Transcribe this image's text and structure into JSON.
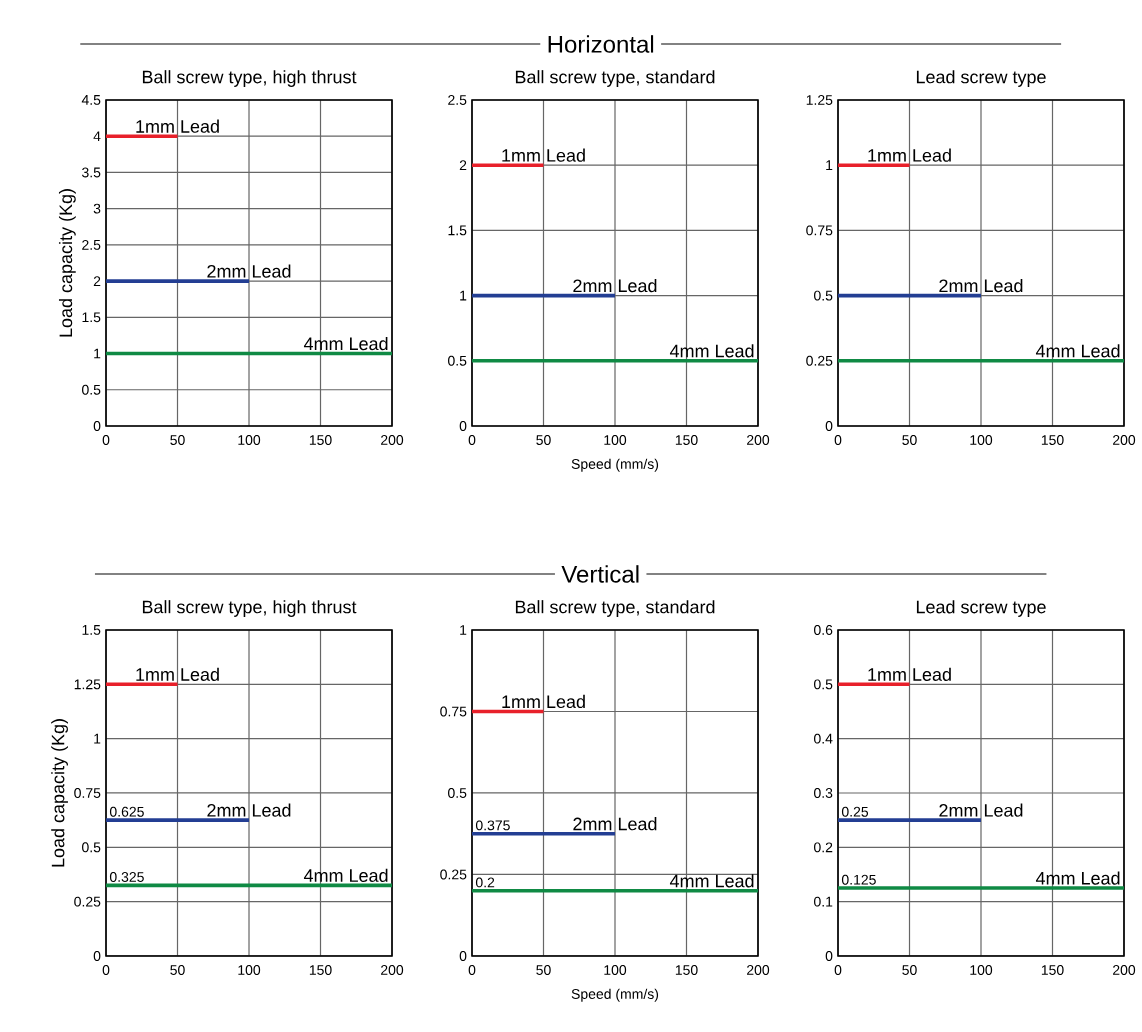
{
  "chart_data": [
    {
      "type": "line",
      "title": "Ball screw type, high thrust",
      "ylabel": "Load capacity (Kg)",
      "grid": true,
      "xlim": [
        0,
        200
      ],
      "ylim": [
        0,
        4.5
      ],
      "xticks": [
        0,
        50,
        100,
        150,
        200
      ],
      "yticks": [
        0,
        0.5,
        1,
        1.5,
        2,
        2.5,
        3,
        3.5,
        4,
        4.5
      ],
      "series": [
        {
          "name": "1mm Lead",
          "color": "#e8202a",
          "x": [
            0,
            50
          ],
          "values": [
            4,
            4
          ]
        },
        {
          "name": "2mm Lead",
          "color": "#233e93",
          "x": [
            0,
            100
          ],
          "values": [
            2,
            2
          ]
        },
        {
          "name": "4mm Lead",
          "color": "#0f8a44",
          "x": [
            0,
            200
          ],
          "values": [
            1,
            1
          ]
        }
      ]
    },
    {
      "type": "line",
      "title": "Ball screw type, standard",
      "xlabel": "Speed (mm/s)",
      "annotations": [
        "Horizontal"
      ],
      "grid": true,
      "xlim": [
        0,
        200
      ],
      "ylim": [
        0,
        2.5
      ],
      "xticks": [
        0,
        50,
        100,
        150,
        200
      ],
      "yticks": [
        0,
        0.5,
        1,
        1.5,
        2,
        2.5
      ],
      "series": [
        {
          "name": "1mm Lead",
          "color": "#e8202a",
          "x": [
            0,
            50
          ],
          "values": [
            2,
            2
          ]
        },
        {
          "name": "2mm Lead",
          "color": "#233e93",
          "x": [
            0,
            100
          ],
          "values": [
            1,
            1
          ]
        },
        {
          "name": "4mm Lead",
          "color": "#0f8a44",
          "x": [
            0,
            200
          ],
          "values": [
            0.5,
            0.5
          ]
        }
      ]
    },
    {
      "type": "line",
      "title": "Lead screw type",
      "grid": true,
      "xlim": [
        0,
        200
      ],
      "ylim": [
        0,
        1.25
      ],
      "xticks": [
        0,
        50,
        100,
        150,
        200
      ],
      "yticks": [
        0,
        0.25,
        0.5,
        0.75,
        1,
        1.25
      ],
      "series": [
        {
          "name": "1mm Lead",
          "color": "#e8202a",
          "x": [
            0,
            50
          ],
          "values": [
            1,
            1
          ]
        },
        {
          "name": "2mm Lead",
          "color": "#233e93",
          "x": [
            0,
            100
          ],
          "values": [
            0.5,
            0.5
          ]
        },
        {
          "name": "4mm Lead",
          "color": "#0f8a44",
          "x": [
            0,
            200
          ],
          "values": [
            0.25,
            0.25
          ]
        }
      ]
    },
    {
      "type": "line",
      "title": "Ball screw type, high thrust",
      "ylabel": "Load capacity (Kg)",
      "grid": true,
      "xlim": [
        0,
        200
      ],
      "ylim": [
        0,
        1.5
      ],
      "xticks": [
        0,
        50,
        100,
        150,
        200
      ],
      "yticks": [
        0,
        0.25,
        0.5,
        0.75,
        1,
        1.25,
        1.5
      ],
      "series": [
        {
          "name": "1mm Lead",
          "color": "#e8202a",
          "x": [
            0,
            50
          ],
          "values": [
            1.25,
            1.25
          ]
        },
        {
          "name": "2mm Lead",
          "color": "#233e93",
          "x": [
            0,
            100
          ],
          "values": [
            0.625,
            0.625
          ],
          "value_labels": [
            "0.625",
            null
          ]
        },
        {
          "name": "4mm Lead",
          "color": "#0f8a44",
          "x": [
            0,
            200
          ],
          "values": [
            0.325,
            0.325
          ],
          "value_labels": [
            "0.325",
            null
          ]
        }
      ]
    },
    {
      "type": "line",
      "title": "Ball screw type, standard",
      "xlabel": "Speed (mm/s)",
      "annotations": [
        "Vertical"
      ],
      "grid": true,
      "xlim": [
        0,
        200
      ],
      "ylim": [
        0,
        1
      ],
      "xticks": [
        0,
        50,
        100,
        150,
        200
      ],
      "yticks": [
        0,
        0.25,
        0.5,
        0.75,
        1
      ],
      "series": [
        {
          "name": "1mm Lead",
          "color": "#e8202a",
          "x": [
            0,
            50
          ],
          "values": [
            0.75,
            0.75
          ]
        },
        {
          "name": "2mm Lead",
          "color": "#233e93",
          "x": [
            0,
            100
          ],
          "values": [
            0.375,
            0.375
          ],
          "value_labels": [
            "0.375",
            null
          ]
        },
        {
          "name": "4mm Lead",
          "color": "#0f8a44",
          "x": [
            0,
            200
          ],
          "values": [
            0.2,
            0.2
          ],
          "value_labels": [
            "0.2",
            null
          ]
        }
      ]
    },
    {
      "type": "line",
      "title": "Lead screw type",
      "grid": true,
      "xlim": [
        0,
        200
      ],
      "ylim": [
        0,
        0.6
      ],
      "xticks": [
        0,
        50,
        100,
        150,
        200
      ],
      "yticks": [
        0,
        0.1,
        0.2,
        0.3,
        0.4,
        0.5,
        0.6
      ],
      "series": [
        {
          "name": "1mm Lead",
          "color": "#e8202a",
          "x": [
            0,
            50
          ],
          "values": [
            0.5,
            0.5
          ]
        },
        {
          "name": "2mm Lead",
          "color": "#233e93",
          "x": [
            0,
            100
          ],
          "values": [
            0.25,
            0.25
          ],
          "value_labels": [
            "0.25",
            null
          ]
        },
        {
          "name": "4mm Lead",
          "color": "#0f8a44",
          "x": [
            0,
            200
          ],
          "values": [
            0.125,
            0.125
          ],
          "value_labels": [
            "0.125",
            null
          ]
        }
      ]
    }
  ]
}
